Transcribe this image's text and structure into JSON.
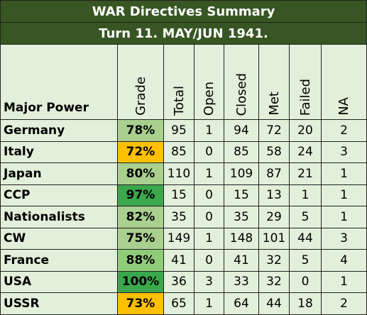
{
  "title": "WAR Directives Summary",
  "subtitle": "Turn 11.  MAY/JUN 1941.",
  "columns": {
    "power": "Major Power",
    "grade": "Grade",
    "total": "Total",
    "open": "Open",
    "closed": "Closed",
    "met": "Met",
    "failed": "Failed",
    "na": "NA"
  },
  "colors": {
    "banner": "#375623",
    "row_background": "#e2efda",
    "grade_light_green": "#a9d08e",
    "grade_mid_green": "#63be57",
    "grade_dark_green": "#3aa84b",
    "grade_orange": "#ffc000"
  },
  "rows": [
    {
      "power": "Germany",
      "grade": "78%",
      "grade_color": "#a9d08e",
      "total": "95",
      "open": "1",
      "closed": "94",
      "met": "72",
      "failed": "20",
      "na": "2"
    },
    {
      "power": "Italy",
      "grade": "72%",
      "grade_color": "#ffc000",
      "total": "85",
      "open": "0",
      "closed": "85",
      "met": "58",
      "failed": "24",
      "na": "3"
    },
    {
      "power": "Japan",
      "grade": "80%",
      "grade_color": "#a9d08e",
      "total": "110",
      "open": "1",
      "closed": "109",
      "met": "87",
      "failed": "21",
      "na": "1"
    },
    {
      "power": "CCP",
      "grade": "97%",
      "grade_color": "#3aa84b",
      "total": "15",
      "open": "0",
      "closed": "15",
      "met": "13",
      "failed": "1",
      "na": "1"
    },
    {
      "power": "Nationalists",
      "grade": "82%",
      "grade_color": "#a9d08e",
      "total": "35",
      "open": "0",
      "closed": "35",
      "met": "29",
      "failed": "5",
      "na": "1"
    },
    {
      "power": "CW",
      "grade": "75%",
      "grade_color": "#a9d08e",
      "total": "149",
      "open": "1",
      "closed": "148",
      "met": "101",
      "failed": "44",
      "na": "3"
    },
    {
      "power": "France",
      "grade": "88%",
      "grade_color": "#8fcc7a",
      "total": "41",
      "open": "0",
      "closed": "41",
      "met": "32",
      "failed": "5",
      "na": "4"
    },
    {
      "power": "USA",
      "grade": "100%",
      "grade_color": "#3aa84b",
      "total": "36",
      "open": "3",
      "closed": "33",
      "met": "32",
      "failed": "0",
      "na": "1"
    },
    {
      "power": "USSR",
      "grade": "73%",
      "grade_color": "#ffc000",
      "total": "65",
      "open": "1",
      "closed": "64",
      "met": "44",
      "failed": "18",
      "na": "2"
    }
  ]
}
